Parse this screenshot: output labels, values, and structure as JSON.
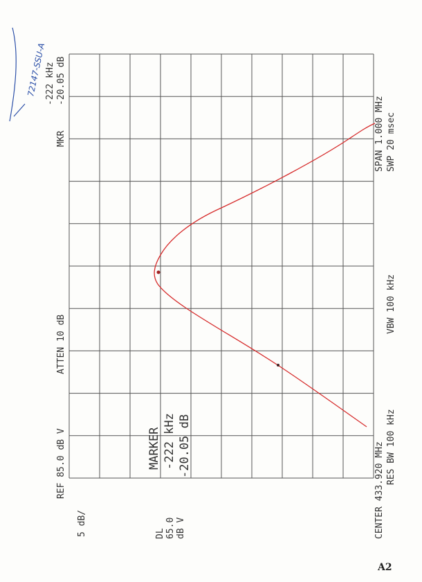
{
  "handwriting": "72147-SSU-A",
  "ref": "REF 85.0 dB V",
  "atten": "ATTEN 10 dB",
  "mkr": {
    "label": "MKR",
    "freq": "-222 kHz",
    "level": "-20.05 dB"
  },
  "scale": "5 dB/",
  "dl": {
    "label": "DL",
    "value": "65.0",
    "unit": "dB V"
  },
  "marker": {
    "label": "MARKER",
    "freq": "-222 kHz",
    "level": "-20.05 dB"
  },
  "center": "CENTER 433.920 MHz",
  "res_bw": "RES BW 100 kHz",
  "vbw": "VBW 100 kHz",
  "span": "SPAN 1.000 MHz",
  "swp": "SWP 20 msec",
  "page_label": "A2"
}
